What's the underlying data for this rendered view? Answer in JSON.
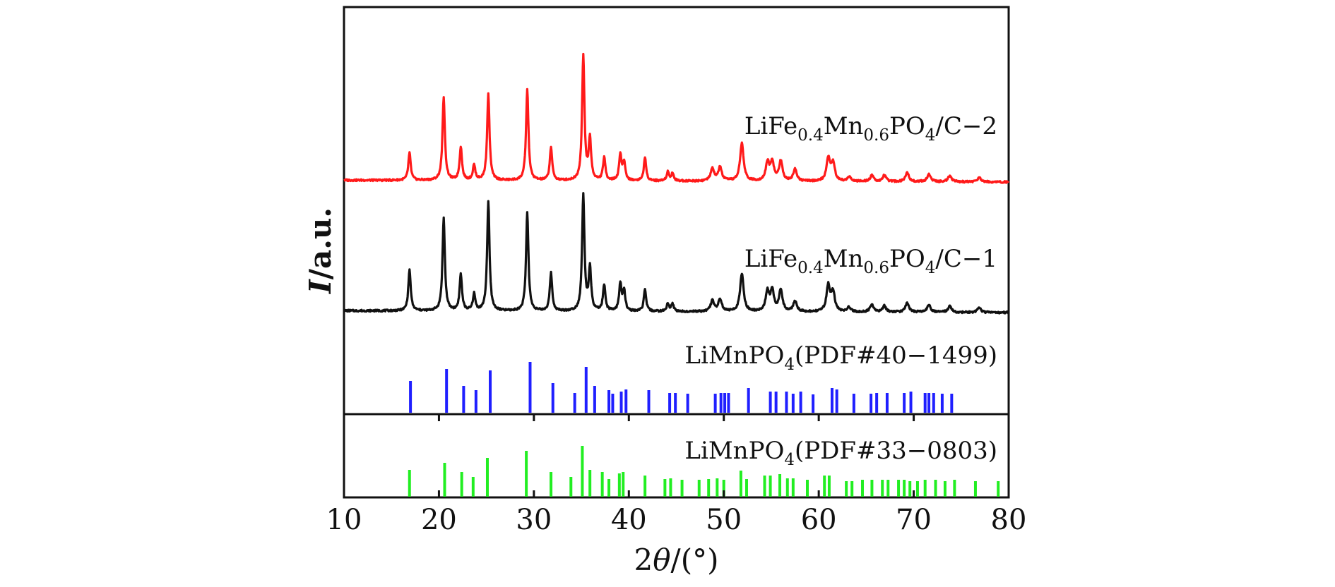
{
  "chart_data": {
    "type": "line",
    "xlabel": {
      "prefix": "2",
      "symbol": "θ",
      "suffix": "/(°)"
    },
    "ylabel": {
      "symbol": "I",
      "suffix": "/a.u."
    },
    "xlim": [
      10,
      80
    ],
    "xticks": [
      10,
      20,
      30,
      40,
      50,
      60,
      70,
      80
    ],
    "grid": false,
    "colors": {
      "sample2": "#ff1a1a",
      "sample1": "#111111",
      "ref1": "#1f1fff",
      "ref2": "#22ee22"
    },
    "series": [
      {
        "key": "sample2",
        "label": {
          "base": "LiFe",
          "s1": "0.4",
          "mid": "Mn",
          "s2": "0.6",
          "mid2": "PO",
          "s3": "4",
          "tail": "/C−2"
        },
        "peaks": [
          [
            16.9,
            0.18
          ],
          [
            20.5,
            0.55
          ],
          [
            22.3,
            0.22
          ],
          [
            23.7,
            0.1
          ],
          [
            25.2,
            0.57
          ],
          [
            29.3,
            0.6
          ],
          [
            31.8,
            0.22
          ],
          [
            35.2,
            0.82
          ],
          [
            35.9,
            0.27
          ],
          [
            37.4,
            0.15
          ],
          [
            39.1,
            0.17
          ],
          [
            39.5,
            0.12
          ],
          [
            41.7,
            0.15
          ],
          [
            44.1,
            0.06
          ],
          [
            44.6,
            0.05
          ],
          [
            48.8,
            0.08
          ],
          [
            49.6,
            0.09
          ],
          [
            51.9,
            0.25
          ],
          [
            54.6,
            0.12
          ],
          [
            55.1,
            0.12
          ],
          [
            56.0,
            0.13
          ],
          [
            57.5,
            0.08
          ],
          [
            61.0,
            0.15
          ],
          [
            61.5,
            0.12
          ],
          [
            63.2,
            0.03
          ],
          [
            65.6,
            0.04
          ],
          [
            66.9,
            0.04
          ],
          [
            69.3,
            0.06
          ],
          [
            71.6,
            0.05
          ],
          [
            73.8,
            0.04
          ],
          [
            76.9,
            0.03
          ]
        ]
      },
      {
        "key": "sample1",
        "label": {
          "base": "LiFe",
          "s1": "0.4",
          "mid": "Mn",
          "s2": "0.6",
          "mid2": "PO",
          "s3": "4",
          "tail": "/C−1"
        },
        "peaks": [
          [
            16.9,
            0.27
          ],
          [
            20.5,
            0.61
          ],
          [
            22.3,
            0.24
          ],
          [
            23.7,
            0.11
          ],
          [
            25.2,
            0.72
          ],
          [
            29.3,
            0.65
          ],
          [
            31.8,
            0.25
          ],
          [
            35.2,
            0.76
          ],
          [
            35.9,
            0.28
          ],
          [
            37.4,
            0.17
          ],
          [
            39.1,
            0.18
          ],
          [
            39.5,
            0.13
          ],
          [
            41.7,
            0.14
          ],
          [
            44.1,
            0.05
          ],
          [
            44.6,
            0.05
          ],
          [
            48.8,
            0.07
          ],
          [
            49.6,
            0.08
          ],
          [
            51.9,
            0.25
          ],
          [
            54.6,
            0.13
          ],
          [
            55.1,
            0.13
          ],
          [
            56.0,
            0.14
          ],
          [
            57.5,
            0.07
          ],
          [
            61.0,
            0.17
          ],
          [
            61.5,
            0.13
          ],
          [
            63.2,
            0.03
          ],
          [
            65.6,
            0.05
          ],
          [
            66.9,
            0.04
          ],
          [
            69.3,
            0.06
          ],
          [
            71.6,
            0.05
          ],
          [
            73.8,
            0.04
          ],
          [
            76.9,
            0.03
          ]
        ]
      }
    ],
    "references": [
      {
        "key": "ref1",
        "label": {
          "base": "LiMnPO",
          "s1": "4",
          "tail": "(PDF#40−1499)"
        },
        "lines": [
          [
            17.0,
            0.45
          ],
          [
            20.8,
            0.62
          ],
          [
            22.6,
            0.38
          ],
          [
            23.9,
            0.32
          ],
          [
            25.4,
            0.6
          ],
          [
            29.6,
            0.72
          ],
          [
            32.0,
            0.42
          ],
          [
            34.3,
            0.28
          ],
          [
            35.5,
            0.65
          ],
          [
            36.4,
            0.38
          ],
          [
            37.9,
            0.32
          ],
          [
            38.3,
            0.27
          ],
          [
            39.2,
            0.3
          ],
          [
            39.7,
            0.33
          ],
          [
            42.1,
            0.32
          ],
          [
            44.3,
            0.28
          ],
          [
            44.9,
            0.28
          ],
          [
            46.2,
            0.27
          ],
          [
            49.1,
            0.27
          ],
          [
            49.7,
            0.28
          ],
          [
            50.1,
            0.28
          ],
          [
            50.5,
            0.28
          ],
          [
            52.6,
            0.35
          ],
          [
            54.9,
            0.3
          ],
          [
            55.5,
            0.3
          ],
          [
            56.6,
            0.3
          ],
          [
            57.3,
            0.27
          ],
          [
            58.1,
            0.3
          ],
          [
            59.4,
            0.26
          ],
          [
            61.4,
            0.35
          ],
          [
            61.9,
            0.33
          ],
          [
            63.7,
            0.27
          ],
          [
            65.5,
            0.27
          ],
          [
            66.1,
            0.28
          ],
          [
            67.2,
            0.28
          ],
          [
            69.0,
            0.28
          ],
          [
            69.7,
            0.3
          ],
          [
            71.2,
            0.28
          ],
          [
            71.6,
            0.28
          ],
          [
            72.1,
            0.28
          ],
          [
            73.0,
            0.27
          ],
          [
            74.0,
            0.27
          ]
        ]
      },
      {
        "key": "ref2",
        "label": {
          "base": "LiMnPO",
          "s1": "4",
          "tail": "(PDF#33−0803)"
        },
        "lines": [
          [
            16.9,
            0.38
          ],
          [
            20.6,
            0.48
          ],
          [
            22.4,
            0.35
          ],
          [
            23.6,
            0.28
          ],
          [
            25.1,
            0.55
          ],
          [
            29.2,
            0.65
          ],
          [
            31.8,
            0.35
          ],
          [
            33.9,
            0.28
          ],
          [
            35.1,
            0.72
          ],
          [
            35.9,
            0.38
          ],
          [
            37.2,
            0.35
          ],
          [
            37.9,
            0.25
          ],
          [
            39.0,
            0.33
          ],
          [
            39.4,
            0.35
          ],
          [
            41.7,
            0.3
          ],
          [
            43.8,
            0.25
          ],
          [
            44.4,
            0.26
          ],
          [
            45.6,
            0.24
          ],
          [
            47.4,
            0.24
          ],
          [
            48.4,
            0.25
          ],
          [
            49.3,
            0.26
          ],
          [
            50.0,
            0.24
          ],
          [
            51.8,
            0.37
          ],
          [
            52.4,
            0.25
          ],
          [
            54.3,
            0.3
          ],
          [
            54.9,
            0.3
          ],
          [
            55.9,
            0.32
          ],
          [
            56.7,
            0.26
          ],
          [
            57.3,
            0.26
          ],
          [
            58.8,
            0.24
          ],
          [
            60.6,
            0.3
          ],
          [
            61.1,
            0.3
          ],
          [
            62.9,
            0.22
          ],
          [
            63.5,
            0.22
          ],
          [
            64.6,
            0.24
          ],
          [
            65.6,
            0.24
          ],
          [
            66.7,
            0.24
          ],
          [
            67.3,
            0.24
          ],
          [
            68.4,
            0.24
          ],
          [
            69.0,
            0.24
          ],
          [
            69.6,
            0.22
          ],
          [
            70.4,
            0.22
          ],
          [
            71.2,
            0.24
          ],
          [
            72.3,
            0.24
          ],
          [
            73.3,
            0.22
          ],
          [
            74.3,
            0.24
          ],
          [
            76.5,
            0.22
          ],
          [
            78.9,
            0.22
          ]
        ]
      }
    ]
  }
}
